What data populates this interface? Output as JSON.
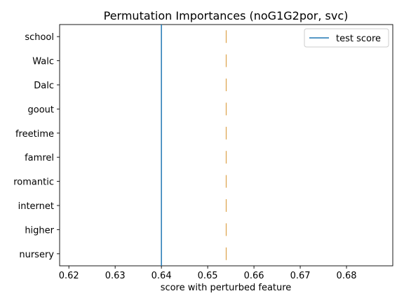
{
  "chart_data": {
    "type": "box",
    "title": "Permutation Importances (noG1G2por, svc)",
    "xlabel": "score with perturbed feature",
    "ylabel": "",
    "xlim": [
      0.618,
      0.69
    ],
    "xticks": [
      0.62,
      0.63,
      0.64,
      0.65,
      0.66,
      0.67,
      0.68
    ],
    "categories": [
      "school",
      "Walc",
      "Dalc",
      "goout",
      "freetime",
      "famrel",
      "romantic",
      "internet",
      "higher",
      "nursery"
    ],
    "median_values": [
      0.654,
      0.654,
      0.654,
      0.654,
      0.654,
      0.654,
      0.654,
      0.654,
      0.654,
      0.654
    ],
    "median_color": "#dca24a",
    "test_score": 0.64,
    "test_score_color": "#1f77b4",
    "legend": {
      "entries": [
        "test score"
      ],
      "location": "upper right"
    },
    "grid": false
  }
}
